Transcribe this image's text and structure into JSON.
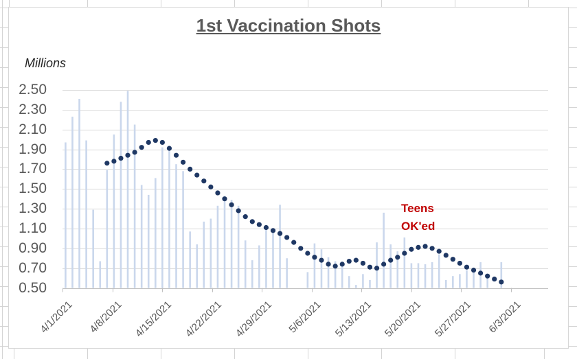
{
  "chart": {
    "title": "1st Vaccination Shots",
    "units_label": "Millions"
  },
  "chart_data": {
    "type": "bar",
    "overlay_type": "scatter",
    "title": "1st Vaccination Shots",
    "units_label": "Millions",
    "ylim": [
      0.5,
      2.5
    ],
    "y_step": 0.2,
    "grid": "horizontal",
    "legend": "none",
    "y_tick_labels": [
      "2.50",
      "2.30",
      "2.10",
      "1.90",
      "1.70",
      "1.50",
      "1.30",
      "1.10",
      "0.90",
      "0.70",
      "0.50"
    ],
    "x_tick_labels": [
      "4/1/2021",
      "4/8/2021",
      "4/15/2021",
      "4/22/2021",
      "4/29/2021",
      "5/6/2021",
      "5/13/2021",
      "5/20/2021",
      "5/27/2021",
      "6/3/2021"
    ],
    "categories": [
      "4/1/2021",
      "4/2/2021",
      "4/3/2021",
      "4/4/2021",
      "4/5/2021",
      "4/6/2021",
      "4/7/2021",
      "4/8/2021",
      "4/9/2021",
      "4/10/2021",
      "4/11/2021",
      "4/12/2021",
      "4/13/2021",
      "4/14/2021",
      "4/15/2021",
      "4/16/2021",
      "4/17/2021",
      "4/18/2021",
      "4/19/2021",
      "4/20/2021",
      "4/21/2021",
      "4/22/2021",
      "4/23/2021",
      "4/24/2021",
      "4/25/2021",
      "4/26/2021",
      "4/27/2021",
      "4/28/2021",
      "4/29/2021",
      "4/30/2021",
      "5/1/2021",
      "5/2/2021",
      "5/3/2021",
      "5/4/2021",
      "5/5/2021",
      "5/6/2021",
      "5/7/2021",
      "5/8/2021",
      "5/9/2021",
      "5/10/2021",
      "5/11/2021",
      "5/12/2021",
      "5/13/2021",
      "5/14/2021",
      "5/15/2021",
      "5/16/2021",
      "5/17/2021",
      "5/18/2021",
      "5/19/2021",
      "5/20/2021",
      "5/21/2021",
      "5/22/2021",
      "5/23/2021",
      "5/24/2021",
      "5/25/2021",
      "5/26/2021",
      "5/27/2021",
      "5/28/2021",
      "5/29/2021",
      "5/30/2021",
      "5/31/2021",
      "6/1/2021",
      "6/2/2021",
      "6/3/2021"
    ],
    "bar_values": [
      1.97,
      2.23,
      2.41,
      1.99,
      1.29,
      0.77,
      1.69,
      2.05,
      2.38,
      2.49,
      2.15,
      1.54,
      1.44,
      1.61,
      1.92,
      1.9,
      1.75,
      1.68,
      1.07,
      0.94,
      1.17,
      1.2,
      1.33,
      1.43,
      1.39,
      1.33,
      0.98,
      0.78,
      0.93,
      1.1,
      1.1,
      1.34,
      0.8,
      0.5,
      0.49,
      0.66,
      0.95,
      0.89,
      0.81,
      0.77,
      0.74,
      0.62,
      0.53,
      0.64,
      0.58,
      0.96,
      1.26,
      0.94,
      0.87,
      1.01,
      0.75,
      0.75,
      0.74,
      0.76,
      0.84,
      0.58,
      0.62,
      0.64,
      0.68,
      0.67,
      0.76,
      0.62,
      0.5,
      0.76
    ],
    "avg_values": [
      null,
      null,
      null,
      null,
      null,
      null,
      1.76,
      1.78,
      1.81,
      1.84,
      1.87,
      1.92,
      1.97,
      1.99,
      1.97,
      1.91,
      1.84,
      1.77,
      1.7,
      1.64,
      1.58,
      1.52,
      1.46,
      1.4,
      1.34,
      1.28,
      1.22,
      1.17,
      1.14,
      1.11,
      1.08,
      1.05,
      1.01,
      0.96,
      0.9,
      0.85,
      0.81,
      0.78,
      0.74,
      0.72,
      0.74,
      0.77,
      0.78,
      0.75,
      0.71,
      0.7,
      0.74,
      0.78,
      0.81,
      0.85,
      0.89,
      0.91,
      0.92,
      0.9,
      0.87,
      0.83,
      0.79,
      0.75,
      0.71,
      0.68,
      0.65,
      0.62,
      0.59,
      0.56
    ],
    "annotation": {
      "line1": "Teens",
      "line2": "OK'ed",
      "color": "#C00000"
    }
  },
  "colors": {
    "bar_fill": "#CAD7EC",
    "dot_fill": "#1F3864",
    "gridline": "#D9D9D9",
    "axis_line": "#BFBFBF",
    "tick": "#BFBFBF",
    "axis_text": "#595959",
    "title_text": "#595959",
    "annotation_text": "#C00000",
    "sheet_gridline": "#D4D4D4",
    "chart_border": "#D7D7D7",
    "chart_fill": "#FFFFFF"
  }
}
